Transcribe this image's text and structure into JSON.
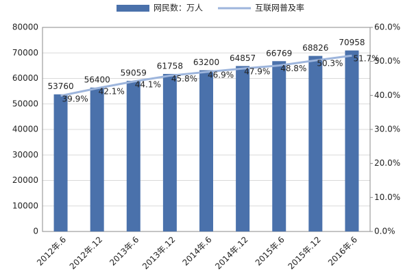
{
  "chart_data": {
    "type": "bar",
    "categories": [
      "2012年.6",
      "2012年.12",
      "2013年.6",
      "2013年.12",
      "2014年.6",
      "2014年.12",
      "2015年.6",
      "2015年.12",
      "2016年.6"
    ],
    "series": [
      {
        "name": "网民数：万人",
        "type": "bar",
        "color": "#4a71ab",
        "values": [
          53760,
          56400,
          59059,
          61758,
          63200,
          64857,
          66769,
          68826,
          70958
        ]
      },
      {
        "name": "互联网普及率",
        "type": "line",
        "axis": "y2",
        "color": "#9db5dc",
        "values": [
          39.9,
          42.1,
          44.1,
          45.8,
          46.9,
          47.9,
          48.8,
          50.3,
          51.7
        ],
        "value_labels": [
          "39.9%",
          "42.1%",
          "44.1%",
          "45.8%",
          "46.9%",
          "47.9%",
          "48.8%",
          "50.3%",
          "51.7%"
        ]
      }
    ],
    "ylim": [
      0,
      80000
    ],
    "yticks": [
      0,
      10000,
      20000,
      30000,
      40000,
      50000,
      60000,
      70000,
      80000
    ],
    "y2lim": [
      0,
      60
    ],
    "y2ticks": [
      {
        "value": 0,
        "label": "0.0%"
      },
      {
        "value": 10,
        "label": "10.0%"
      },
      {
        "value": 20,
        "label": "20.0%"
      },
      {
        "value": 30,
        "label": "30.0%"
      },
      {
        "value": 40,
        "label": "40.0%"
      },
      {
        "value": 50,
        "label": "50.0%"
      },
      {
        "value": 60,
        "label": "60.0%"
      }
    ],
    "grid": true,
    "legend": "top"
  }
}
